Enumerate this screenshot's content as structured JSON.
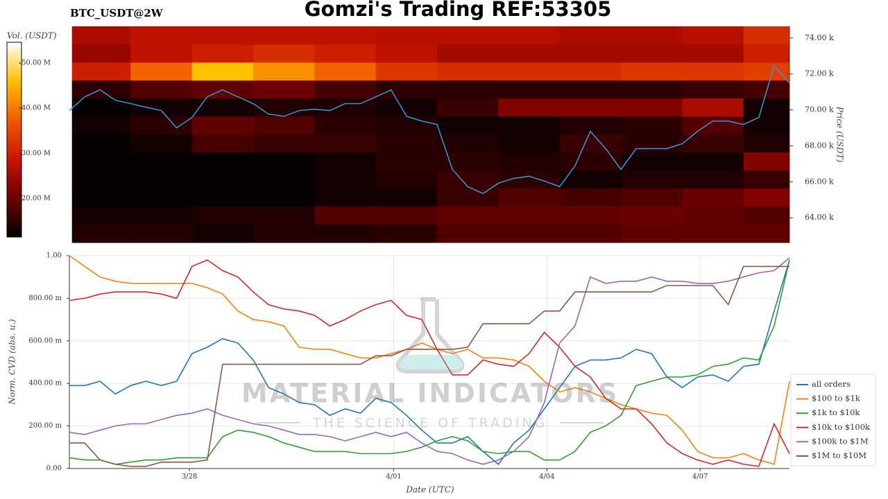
{
  "watermark": {
    "title": "MATERIAL INDICATORS",
    "subtitle": "THE SCIENCE OF TRADING"
  },
  "chart_data": [
    {
      "type": "heatmap",
      "title": "Gomzi's Trading REF:53305",
      "subtitle": "BTC_USDT@2W",
      "colorbar_label": "Vol. (USDT)",
      "ylabel": "Price (USDT)",
      "colorscale": [
        "#000000",
        "#6e0000",
        "#c81400",
        "#f05a00",
        "#ffc000",
        "#ffffff"
      ],
      "clim": [
        11500000,
        54600000
      ],
      "colorbar_ticks": [
        {
          "value": 20000000,
          "label": "20.00 M"
        },
        {
          "value": 30000000,
          "label": "30.00 M"
        },
        {
          "value": 40000000,
          "label": "40.00 M"
        },
        {
          "value": 50000000,
          "label": "50.00 M"
        }
      ],
      "xlim": [
        0,
        14.1
      ],
      "ylim": [
        62620,
        74650
      ],
      "yticks": [
        {
          "value": 64000,
          "label": "64.00 k"
        },
        {
          "value": 66000,
          "label": "66.00 k"
        },
        {
          "value": 68000,
          "label": "68.00 k"
        },
        {
          "value": 70000,
          "label": "70.00 k"
        },
        {
          "value": 72000,
          "label": "72.00 k"
        },
        {
          "value": 74000,
          "label": "74.00 k"
        }
      ],
      "x_bins": [
        0.05,
        1.2,
        2.4,
        3.6,
        4.8,
        6,
        7.2,
        8.4,
        9.6,
        10.8,
        12,
        13.2,
        14.1
      ],
      "y_bins": [
        62620,
        63650,
        64650,
        65650,
        66650,
        67650,
        68650,
        69650,
        70650,
        71650,
        72650,
        73650,
        74650
      ],
      "z": [
        [
          14000000.0,
          14000000.0,
          13000000.0,
          14000000.0,
          14000000.0,
          15000000.0,
          18000000.0,
          18000000.0,
          18000000.0,
          19000000.0,
          19000000.0,
          19000000.0
        ],
        [
          13000000.0,
          13000000.0,
          14000000.0,
          14000000.0,
          18000000.0,
          18000000.0,
          19000000.0,
          19000000.0,
          19000000.0,
          20000000.0,
          19000000.0,
          18000000.0
        ],
        [
          12000000.0,
          12000000.0,
          12000000.0,
          12000000.0,
          13000000.0,
          13000000.0,
          16000000.0,
          18000000.0,
          17000000.0,
          18000000.0,
          20000000.0,
          22000000.0
        ],
        [
          12000000.0,
          12000000.0,
          12000000.0,
          12000000.0,
          13000000.0,
          14000000.0,
          16000000.0,
          15000000.0,
          13000000.0,
          14000000.0,
          14000000.0,
          16000000.0
        ],
        [
          12000000.0,
          12000000.0,
          12000000.0,
          12000000.0,
          13000000.0,
          15000000.0,
          15000000.0,
          14000000.0,
          15000000.0,
          13000000.0,
          13000000.0,
          22000000.0
        ],
        [
          12000000.0,
          13000000.0,
          17000000.0,
          16000000.0,
          16000000.0,
          15000000.0,
          14000000.0,
          13000000.0,
          16000000.0,
          15000000.0,
          16000000.0,
          14000000.0
        ],
        [
          13000000.0,
          15000000.0,
          19000000.0,
          18000000.0,
          15000000.0,
          14000000.0,
          13000000.0,
          13000000.0,
          14000000.0,
          15000000.0,
          18000000.0,
          13000000.0
        ],
        [
          12000000.0,
          13000000.0,
          13000000.0,
          14000000.0,
          14000000.0,
          13000000.0,
          16000000.0,
          22000000.0,
          22000000.0,
          22000000.0,
          26000000.0,
          13000000.0
        ],
        [
          15000000.0,
          18000000.0,
          19000000.0,
          20000000.0,
          17000000.0,
          15000000.0,
          15000000.0,
          15000000.0,
          15000000.0,
          15000000.0,
          16000000.0,
          17000000.0
        ],
        [
          30000000.0,
          38000000.0,
          46000000.0,
          42000000.0,
          38000000.0,
          33000000.0,
          32000000.0,
          32000000.0,
          32000000.0,
          33000000.0,
          33000000.0,
          34000000.0
        ],
        [
          24000000.0,
          28000000.0,
          30000000.0,
          32000000.0,
          30000000.0,
          28000000.0,
          25000000.0,
          25000000.0,
          25000000.0,
          25000000.0,
          25000000.0,
          30000000.0
        ],
        [
          26000000.0,
          28000000.0,
          28000000.0,
          28000000.0,
          28000000.0,
          27000000.0,
          27000000.0,
          27000000.0,
          26000000.0,
          26000000.0,
          27000000.0,
          32000000.0
        ]
      ],
      "x": [
        0,
        0.3,
        0.6,
        0.9,
        1.2,
        1.5,
        1.8,
        2.1,
        2.4,
        2.7,
        3,
        3.3,
        3.6,
        3.9,
        4.2,
        4.5,
        4.8,
        5.1,
        5.4,
        5.7,
        6,
        6.3,
        6.6,
        6.9,
        7.2,
        7.5,
        7.8,
        8.1,
        8.4,
        8.7,
        9,
        9.3,
        9.6,
        9.9,
        10.2,
        10.5,
        10.8,
        11.1,
        11.4,
        11.7,
        12,
        12.3,
        12.6,
        12.9,
        13.2,
        13.5,
        13.8,
        14.1
      ],
      "price_line": {
        "color": "#3a8fd0",
        "values": [
          69960,
          70730,
          71120,
          70540,
          70350,
          70150,
          69960,
          69000,
          69580,
          70730,
          71120,
          70730,
          70350,
          69770,
          69650,
          69960,
          70040,
          69960,
          70350,
          70350,
          70730,
          71120,
          69650,
          69380,
          69190,
          66690,
          65730,
          65350,
          65920,
          66190,
          66310,
          66040,
          65730,
          66880,
          68810,
          67850,
          66690,
          67850,
          67850,
          67850,
          68120,
          68810,
          69380,
          69380,
          69190,
          69580,
          72460,
          71500
        ]
      }
    },
    {
      "type": "line",
      "xlabel": "Date (UTC)",
      "ylabel": "Norm. CVD (abs. u.)",
      "grid": true,
      "legend": "right",
      "xlim": [
        0,
        14.1
      ],
      "ylim": [
        0,
        1
      ],
      "xticks": [
        {
          "value": 2.35,
          "label": "3/28"
        },
        {
          "value": 6.35,
          "label": "4/01"
        },
        {
          "value": 9.35,
          "label": "4/04"
        },
        {
          "value": 12.35,
          "label": "4/07"
        }
      ],
      "yticks": [
        {
          "value": 0,
          "label": "0.00"
        },
        {
          "value": 0.2,
          "label": "200.00 m"
        },
        {
          "value": 0.4,
          "label": "400.00 m"
        },
        {
          "value": 0.6,
          "label": "600.00 m"
        },
        {
          "value": 0.8,
          "label": "800.00 m"
        },
        {
          "value": 1,
          "label": "1.00"
        }
      ],
      "x": [
        0,
        0.3,
        0.6,
        0.9,
        1.2,
        1.5,
        1.8,
        2.1,
        2.4,
        2.7,
        3,
        3.3,
        3.6,
        3.9,
        4.2,
        4.5,
        4.8,
        5.1,
        5.4,
        5.7,
        6,
        6.3,
        6.6,
        6.9,
        7.2,
        7.5,
        7.8,
        8.1,
        8.4,
        8.7,
        9,
        9.3,
        9.6,
        9.9,
        10.2,
        10.5,
        10.8,
        11.1,
        11.4,
        11.7,
        12,
        12.3,
        12.6,
        12.9,
        13.2,
        13.5,
        13.8,
        14.1
      ],
      "series": [
        {
          "name": "all orders",
          "color": "#1f77b4",
          "values": [
            0.39,
            0.39,
            0.41,
            0.35,
            0.39,
            0.41,
            0.39,
            0.41,
            0.54,
            0.57,
            0.61,
            0.59,
            0.51,
            0.38,
            0.35,
            0.31,
            0.3,
            0.25,
            0.28,
            0.26,
            0.33,
            0.31,
            0.25,
            0.18,
            0.12,
            0.12,
            0.15,
            0.08,
            0.02,
            0.12,
            0.18,
            0.28,
            0.38,
            0.48,
            0.51,
            0.51,
            0.52,
            0.56,
            0.54,
            0.43,
            0.38,
            0.43,
            0.44,
            0.41,
            0.48,
            0.49,
            0.74,
            0.98
          ]
        },
        {
          "name": "$100 to $1k",
          "color": "#ff7f0e",
          "values": [
            1.0,
            0.95,
            0.9,
            0.88,
            0.87,
            0.87,
            0.87,
            0.87,
            0.87,
            0.85,
            0.82,
            0.74,
            0.7,
            0.69,
            0.67,
            0.57,
            0.56,
            0.56,
            0.54,
            0.52,
            0.52,
            0.54,
            0.56,
            0.59,
            0.56,
            0.54,
            0.56,
            0.52,
            0.52,
            0.51,
            0.48,
            0.41,
            0.36,
            0.38,
            0.36,
            0.33,
            0.3,
            0.28,
            0.26,
            0.25,
            0.18,
            0.08,
            0.05,
            0.05,
            0.07,
            0.04,
            0.02,
            0.41
          ]
        },
        {
          "name": "$1k to $10k",
          "color": "#2ca02c",
          "values": [
            0.05,
            0.04,
            0.04,
            0.02,
            0.03,
            0.04,
            0.04,
            0.05,
            0.05,
            0.05,
            0.15,
            0.18,
            0.17,
            0.15,
            0.12,
            0.1,
            0.08,
            0.08,
            0.08,
            0.07,
            0.07,
            0.07,
            0.08,
            0.1,
            0.13,
            0.15,
            0.13,
            0.08,
            0.07,
            0.08,
            0.08,
            0.04,
            0.04,
            0.08,
            0.17,
            0.2,
            0.25,
            0.39,
            0.41,
            0.43,
            0.43,
            0.44,
            0.48,
            0.49,
            0.52,
            0.51,
            0.67,
            0.98
          ]
        },
        {
          "name": "$10k to $100k",
          "color": "#d62728",
          "values": [
            0.79,
            0.8,
            0.82,
            0.83,
            0.83,
            0.83,
            0.82,
            0.8,
            0.95,
            0.98,
            0.93,
            0.9,
            0.83,
            0.77,
            0.75,
            0.74,
            0.72,
            0.67,
            0.7,
            0.74,
            0.77,
            0.79,
            0.72,
            0.7,
            0.56,
            0.44,
            0.44,
            0.51,
            0.49,
            0.48,
            0.54,
            0.64,
            0.57,
            0.48,
            0.43,
            0.33,
            0.28,
            0.28,
            0.21,
            0.12,
            0.07,
            0.04,
            0.02,
            0.04,
            0.02,
            0.01,
            0.21,
            0.07
          ]
        },
        {
          "name": "$100k to $1M",
          "color": "#9467bd",
          "values": [
            0.17,
            0.16,
            0.18,
            0.2,
            0.21,
            0.21,
            0.23,
            0.25,
            0.26,
            0.28,
            0.25,
            0.23,
            0.21,
            0.2,
            0.18,
            0.16,
            0.16,
            0.15,
            0.13,
            0.15,
            0.17,
            0.15,
            0.17,
            0.12,
            0.08,
            0.07,
            0.04,
            0.02,
            0.04,
            0.08,
            0.15,
            0.31,
            0.59,
            0.67,
            0.9,
            0.87,
            0.88,
            0.88,
            0.9,
            0.88,
            0.88,
            0.87,
            0.87,
            0.88,
            0.9,
            0.92,
            0.93,
            0.99
          ]
        },
        {
          "name": "$1M to $10M",
          "color": "#8c564b",
          "values": [
            0.12,
            0.12,
            0.04,
            0.02,
            0.01,
            0.01,
            0.03,
            0.03,
            0.03,
            0.04,
            0.49,
            0.49,
            0.49,
            0.49,
            0.49,
            0.49,
            0.49,
            0.49,
            0.49,
            0.49,
            0.53,
            0.53,
            0.56,
            0.56,
            0.56,
            0.56,
            0.57,
            0.68,
            0.68,
            0.68,
            0.68,
            0.74,
            0.74,
            0.83,
            0.83,
            0.83,
            0.83,
            0.83,
            0.83,
            0.86,
            0.86,
            0.86,
            0.86,
            0.77,
            0.95,
            0.95,
            0.95,
            0.95
          ]
        }
      ]
    }
  ]
}
